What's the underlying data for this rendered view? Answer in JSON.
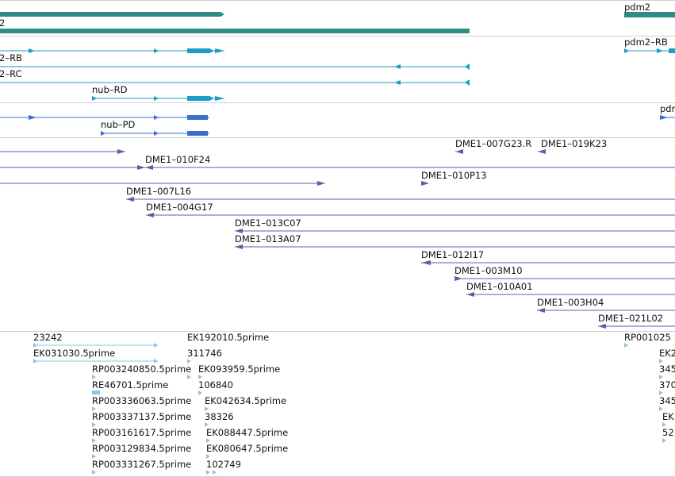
{
  "colors": {
    "gene": "#2e8b86",
    "transcript": "#1a9cc7",
    "protein": "#3a6fcb",
    "bac": "#6f55a6",
    "est": "#8ec3e0"
  },
  "labels": {
    "gene_pdm2": "pdm2",
    "gene_cut": "2",
    "tx_pdm2_rb": "pdm2–RB",
    "tx_rb_cut": "2–RB",
    "tx_rc_cut": "2–RC",
    "tx_nub_rd": "nub–RD",
    "pr_nub_pd": "nub–PD",
    "pr_pdm_cut": "pdr",
    "bac": {
      "b007G23": "DME1–007G23.R",
      "b019K23": "DME1–019K23",
      "b010F24": "DME1–010F24",
      "b010P13": "DME1–010P13",
      "b007L16": "DME1–007L16",
      "b004G17": "DME1–004G17",
      "b013C07": "DME1–013C07",
      "b013A07": "DME1–013A07",
      "b012I17": "DME1–012I17",
      "b003M10": "DME1–003M10",
      "b010A01": "DME1–010A01",
      "b003H04": "DME1–003H04",
      "b021L02": "DME1–021L02"
    },
    "est": {
      "e23242": "23242",
      "eEK031030": "EK031030.5prime",
      "eEK192010": "EK192010.5prime",
      "e311746": "311746",
      "eRP001025": "RP001025",
      "eRP003240850": "RP003240850.5prime",
      "eEK093959": "EK093959.5prime",
      "eRE46701": "RE46701.5prime",
      "e106840": "106840",
      "eRP003336063": "RP003336063.5prime",
      "eEK042634": "EK042634.5prime",
      "eRP003337137": "RP003337137.5prime",
      "e38326": "38326",
      "eRP003161617": "RP003161617.5prime",
      "eEK088447": "EK088447.5prime",
      "eRP003129834": "RP003129834.5prime",
      "eEK080647": "EK080647.5prime",
      "eRP003331267": "RP003331267.5prime",
      "e102749": "102749",
      "cutEK2": "EK2",
      "cut345a": "345",
      "cut370": "370",
      "cut345b": "345",
      "cutEK": "EK",
      "cut52": "52"
    }
  }
}
